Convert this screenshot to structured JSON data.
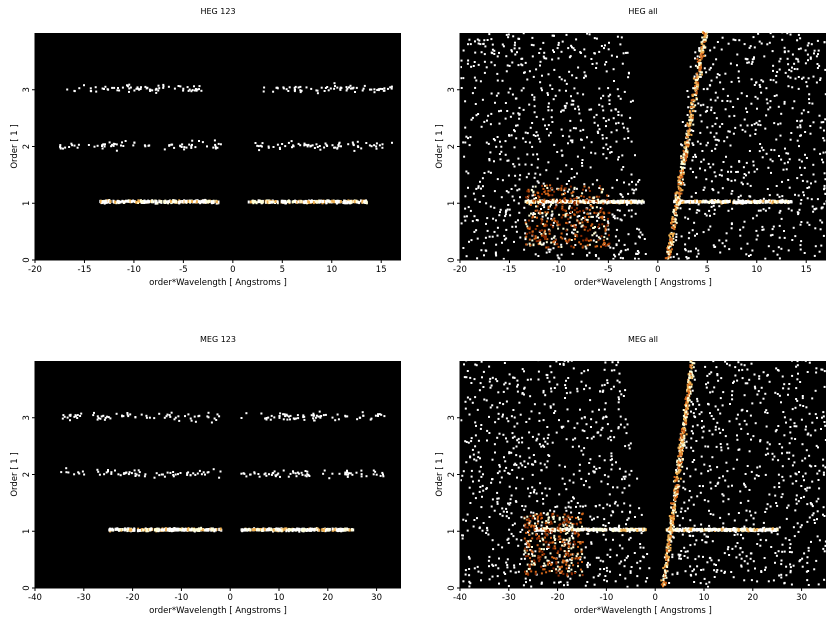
{
  "colors": {
    "background": "#000000",
    "page": "#ffffff",
    "colormap": [
      "#3a0a00",
      "#8a2a00",
      "#d4661a",
      "#f0b050",
      "#ffffd8",
      "#ffffff"
    ]
  },
  "chart_data": [
    {
      "type": "heatmap",
      "title": "HEG 123",
      "xlabel": "order*Wavelength [ Angstroms ]",
      "ylabel": "Order [ 1 ]",
      "xlim": [
        -20,
        17
      ],
      "ylim": [
        0,
        4
      ],
      "xticks": [
        -20,
        -15,
        -10,
        -5,
        0,
        5,
        10,
        15
      ],
      "yticks": [
        0,
        1,
        2,
        3
      ],
      "grid": false,
      "bands": [
        {
          "order": 1,
          "x_ranges": [
            [
              -13.5,
              -1.5
            ],
            [
              1.5,
              13.5
            ]
          ],
          "intensity": "high"
        },
        {
          "order": 2,
          "x_ranges": [
            [
              -18,
              -1
            ],
            [
              2,
              16
            ]
          ],
          "intensity": "low"
        },
        {
          "order": 3,
          "x_ranges": [
            [
              -17,
              -3
            ],
            [
              3,
              16
            ]
          ],
          "intensity": "low"
        }
      ]
    },
    {
      "type": "heatmap",
      "title": "HEG all",
      "xlabel": "order*Wavelength [ Angstroms ]",
      "ylabel": "Order [ 1 ]",
      "xlim": [
        -20,
        17
      ],
      "ylim": [
        0,
        4
      ],
      "xticks": [
        -20,
        -15,
        -10,
        -5,
        0,
        5,
        10,
        15
      ],
      "yticks": [
        0,
        1,
        2,
        3
      ],
      "grid": false,
      "bands": [
        {
          "order": 1,
          "x_ranges": [
            [
              -13.5,
              -1.5
            ],
            [
              1.5,
              13.5
            ]
          ],
          "intensity": "high"
        }
      ]
    },
    {
      "type": "heatmap",
      "title": "MEG 123",
      "xlabel": "order*Wavelength [ Angstroms ]",
      "ylabel": "Order [ 1 ]",
      "xlim": [
        -40,
        35
      ],
      "ylim": [
        0,
        4
      ],
      "xticks": [
        -40,
        -30,
        -20,
        -10,
        0,
        10,
        20,
        30
      ],
      "yticks": [
        0,
        1,
        2,
        3
      ],
      "grid": false,
      "bands": [
        {
          "order": 1,
          "x_ranges": [
            [
              -25,
              -2
            ],
            [
              2,
              25
            ]
          ],
          "intensity": "high"
        },
        {
          "order": 2,
          "x_ranges": [
            [
              -35,
              -2
            ],
            [
              2,
              32
            ]
          ],
          "intensity": "low"
        },
        {
          "order": 3,
          "x_ranges": [
            [
              -35,
              -2
            ],
            [
              2,
              32
            ]
          ],
          "intensity": "low"
        }
      ]
    },
    {
      "type": "heatmap",
      "title": "MEG all",
      "xlabel": "order*Wavelength [ Angstroms ]",
      "ylabel": "Order [ 1 ]",
      "xlim": [
        -40,
        35
      ],
      "ylim": [
        0,
        4
      ],
      "xticks": [
        -40,
        -30,
        -20,
        -10,
        0,
        10,
        20,
        30
      ],
      "yticks": [
        0,
        1,
        2,
        3
      ],
      "grid": false,
      "bands": [
        {
          "order": 1,
          "x_ranges": [
            [
              -25,
              -2
            ],
            [
              2,
              25
            ]
          ],
          "intensity": "high"
        }
      ]
    }
  ]
}
